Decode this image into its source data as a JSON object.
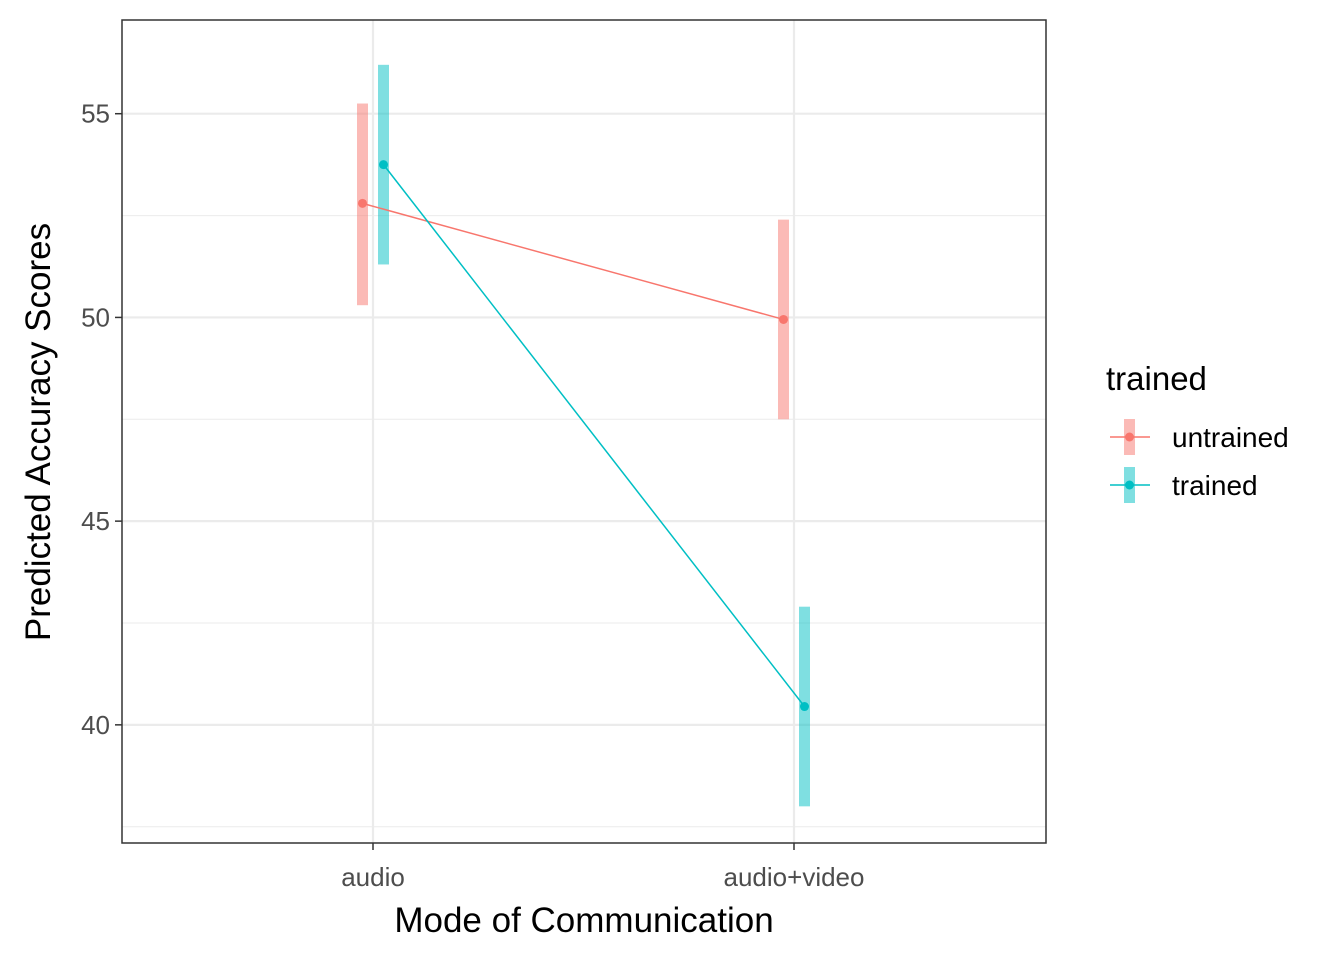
{
  "chart_data": {
    "type": "line",
    "title": "",
    "xlabel": "Mode of Communication",
    "ylabel": "Predicted Accuracy Scores",
    "categories": [
      "audio",
      "audio+video"
    ],
    "ylim": [
      37.1,
      57.3
    ],
    "yticks": [
      40,
      45,
      50,
      55
    ],
    "grid": true,
    "legend": {
      "title": "trained",
      "placement": "right"
    },
    "series": [
      {
        "name": "untrained",
        "color": "#F8766D",
        "values": [
          52.8,
          49.95
        ],
        "lower": [
          50.3,
          47.5
        ],
        "upper": [
          55.25,
          52.4
        ]
      },
      {
        "name": "trained",
        "color": "#00BFC4",
        "values": [
          53.75,
          40.45
        ],
        "lower": [
          51.3,
          38.0
        ],
        "upper": [
          56.2,
          42.9
        ]
      }
    ]
  }
}
